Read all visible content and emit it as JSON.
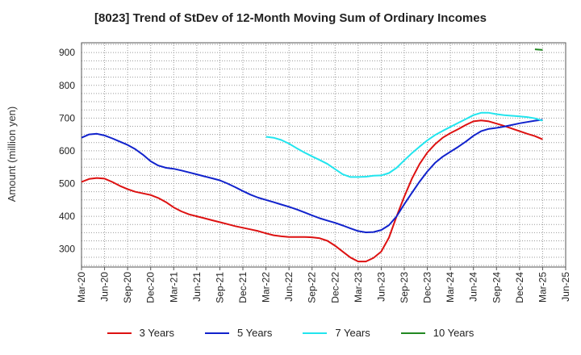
{
  "chart_data": {
    "type": "line",
    "title": "[8023]  Trend of StDev of 12-Month Moving Sum of Ordinary Incomes",
    "xlabel": "",
    "ylabel": "Amount (million yen)",
    "ylim": [
      245,
      930
    ],
    "yticks": [
      300,
      400,
      500,
      600,
      700,
      800,
      900
    ],
    "x_range": [
      "Mar-20",
      "Jun-25"
    ],
    "categories": [
      "Mar-20",
      "Jun-20",
      "Sep-20",
      "Dec-20",
      "Mar-21",
      "Jun-21",
      "Sep-21",
      "Dec-21",
      "Mar-22",
      "Jun-22",
      "Sep-22",
      "Dec-22",
      "Mar-23",
      "Jun-23",
      "Sep-23",
      "Dec-23",
      "Mar-24",
      "Jun-24",
      "Sep-24",
      "Dec-24",
      "Mar-25",
      "Jun-25"
    ],
    "grid": true,
    "legend_position": "bottom",
    "series": [
      {
        "name": "3 Years",
        "color": "#dd1111",
        "x": [
          "Mar-20",
          "Apr-20",
          "May-20",
          "Jun-20",
          "Jul-20",
          "Aug-20",
          "Sep-20",
          "Oct-20",
          "Nov-20",
          "Dec-20",
          "Jan-21",
          "Feb-21",
          "Mar-21",
          "Apr-21",
          "May-21",
          "Jun-21",
          "Jul-21",
          "Aug-21",
          "Sep-21",
          "Oct-21",
          "Nov-21",
          "Dec-21",
          "Jan-22",
          "Feb-22",
          "Mar-22",
          "Apr-22",
          "May-22",
          "Jun-22",
          "Jul-22",
          "Aug-22",
          "Sep-22",
          "Oct-22",
          "Nov-22",
          "Dec-22",
          "Jan-23",
          "Feb-23",
          "Mar-23",
          "Apr-23",
          "May-23",
          "Jun-23",
          "Jul-23",
          "Aug-23",
          "Sep-23",
          "Oct-23",
          "Nov-23",
          "Dec-23",
          "Jan-24",
          "Feb-24",
          "Mar-24",
          "Apr-24",
          "May-24",
          "Jun-24",
          "Jul-24",
          "Aug-24",
          "Sep-24",
          "Oct-24",
          "Nov-24",
          "Dec-24",
          "Jan-25",
          "Feb-25",
          "Mar-25"
        ],
        "values": [
          505,
          514,
          517,
          515,
          505,
          493,
          483,
          475,
          470,
          465,
          456,
          443,
          427,
          415,
          406,
          400,
          394,
          388,
          382,
          376,
          370,
          365,
          360,
          355,
          348,
          342,
          339,
          337,
          337,
          337,
          336,
          333,
          325,
          310,
          292,
          274,
          262,
          262,
          273,
          292,
          335,
          400,
          460,
          515,
          560,
          595,
          620,
          640,
          654,
          666,
          679,
          690,
          693,
          690,
          683,
          676,
          668,
          660,
          652,
          645,
          635
        ]
      },
      {
        "name": "5 Years",
        "color": "#1122cc",
        "x": [
          "Mar-20",
          "Apr-20",
          "May-20",
          "Jun-20",
          "Jul-20",
          "Aug-20",
          "Sep-20",
          "Oct-20",
          "Nov-20",
          "Dec-20",
          "Jan-21",
          "Feb-21",
          "Mar-21",
          "Apr-21",
          "May-21",
          "Jun-21",
          "Jul-21",
          "Aug-21",
          "Sep-21",
          "Oct-21",
          "Nov-21",
          "Dec-21",
          "Jan-22",
          "Feb-22",
          "Mar-22",
          "Apr-22",
          "May-22",
          "Jun-22",
          "Jul-22",
          "Aug-22",
          "Sep-22",
          "Oct-22",
          "Nov-22",
          "Dec-22",
          "Jan-23",
          "Feb-23",
          "Mar-23",
          "Apr-23",
          "May-23",
          "Jun-23",
          "Jul-23",
          "Aug-23",
          "Sep-23",
          "Oct-23",
          "Nov-23",
          "Dec-23",
          "Jan-24",
          "Feb-24",
          "Mar-24",
          "Apr-24",
          "May-24",
          "Jun-24",
          "Jul-24",
          "Aug-24",
          "Sep-24",
          "Oct-24",
          "Nov-24",
          "Dec-24",
          "Jan-25",
          "Feb-25",
          "Mar-25"
        ],
        "values": [
          640,
          650,
          652,
          647,
          638,
          628,
          618,
          605,
          588,
          568,
          555,
          548,
          545,
          540,
          534,
          528,
          522,
          516,
          510,
          500,
          489,
          477,
          466,
          457,
          450,
          443,
          436,
          429,
          421,
          412,
          403,
          394,
          387,
          380,
          372,
          363,
          355,
          351,
          352,
          358,
          373,
          400,
          437,
          472,
          506,
          537,
          563,
          582,
          597,
          612,
          628,
          646,
          660,
          667,
          670,
          674,
          679,
          684,
          688,
          692,
          695
        ]
      },
      {
        "name": "7 Years",
        "color": "#22e5ee",
        "x": [
          "Mar-22",
          "Apr-22",
          "May-22",
          "Jun-22",
          "Jul-22",
          "Aug-22",
          "Sep-22",
          "Oct-22",
          "Nov-22",
          "Dec-22",
          "Jan-23",
          "Feb-23",
          "Mar-23",
          "Apr-23",
          "May-23",
          "Jun-23",
          "Jul-23",
          "Aug-23",
          "Sep-23",
          "Oct-23",
          "Nov-23",
          "Dec-23",
          "Jan-24",
          "Feb-24",
          "Mar-24",
          "Apr-24",
          "May-24",
          "Jun-24",
          "Jul-24",
          "Aug-24",
          "Sep-24",
          "Oct-24",
          "Nov-24",
          "Dec-24",
          "Jan-25",
          "Feb-25",
          "Mar-25"
        ],
        "values": [
          643,
          640,
          633,
          622,
          608,
          595,
          583,
          572,
          560,
          544,
          528,
          520,
          520,
          521,
          524,
          525,
          532,
          548,
          571,
          593,
          613,
          632,
          648,
          661,
          673,
          685,
          697,
          709,
          716,
          716,
          712,
          709,
          707,
          705,
          703,
          699,
          692
        ]
      },
      {
        "name": "10 Years",
        "color": "#228822",
        "x": [
          "Feb-25",
          "Mar-25"
        ],
        "values": [
          910,
          908
        ]
      }
    ]
  },
  "legend": [
    {
      "label": "3 Years",
      "color": "#dd1111"
    },
    {
      "label": "5 Years",
      "color": "#1122cc"
    },
    {
      "label": "7 Years",
      "color": "#22e5ee"
    },
    {
      "label": "10 Years",
      "color": "#228822"
    }
  ]
}
